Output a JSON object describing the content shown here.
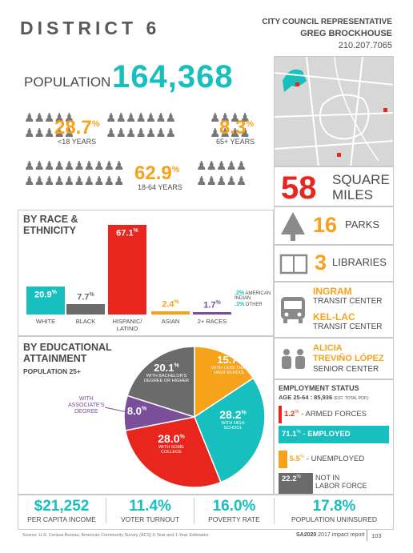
{
  "header": {
    "title": "DISTRICT 6",
    "rep_line1": "CITY COUNCIL REPRESENTATIVE",
    "rep_line2": "GREG BROCKHOUSE",
    "phone": "210.207.7065"
  },
  "population": {
    "label": "POPULATION",
    "value": "164,368"
  },
  "age": {
    "under18": {
      "value": "28.7",
      "unit": "%",
      "label": "<18 YEARS"
    },
    "over65": {
      "value": "8.3",
      "unit": "%",
      "label": "65+ YEARS"
    },
    "adult": {
      "value": "62.9",
      "unit": "%",
      "label": "18-64 YEARS"
    }
  },
  "area": {
    "value": "58",
    "unit_line1": "SQUARE",
    "unit_line2": "MILES"
  },
  "race": {
    "title_line1": "BY RACE &",
    "title_line2": "ETHNICITY",
    "bars": [
      {
        "label": "WHITE",
        "value": 20.9,
        "value_text": "20.9",
        "color": "#17bfbf"
      },
      {
        "label": "BLACK",
        "value": 7.7,
        "value_text": "7.7",
        "color": "#6b6b6b"
      },
      {
        "label": "HISPANIC/\nLATINO",
        "value": 67.1,
        "value_text": "67.1",
        "color": "#e8261e"
      },
      {
        "label": "ASIAN",
        "value": 2.4,
        "value_text": "2.4",
        "color": "#f7a21b"
      },
      {
        "label": "2+ RACES",
        "value": 1.7,
        "value_text": "1.7",
        "color": "#7a4f9a"
      }
    ],
    "minor": [
      {
        "value_text": ".2%",
        "label": "AMERICAN INDIAN"
      },
      {
        "value_text": ".1%",
        "label": "OTHER"
      }
    ]
  },
  "education": {
    "title_line1": "BY EDUCATIONAL",
    "title_line2": "ATTAINMENT",
    "subtitle": "POPULATION 25+",
    "chart_data": {
      "type": "pie",
      "slices": [
        {
          "name": "WITH LESS THAN HIGH SCHOOL",
          "value": 15.7,
          "color": "#f7a21b"
        },
        {
          "name": "WITH HIGH SCHOOL",
          "value": 28.2,
          "color": "#17bfbf"
        },
        {
          "name": "WITH SOME COLLEGE",
          "value": 28.0,
          "color": "#e8261e"
        },
        {
          "name": "WITH ASSOCIATE'S DEGREE",
          "value": 8.0,
          "color": "#7a4f9a"
        },
        {
          "name": "WITH BACHELOR'S DEGREE OR HIGHER",
          "value": 20.1,
          "color": "#6b6b6b"
        }
      ]
    },
    "labels": {
      "less_hs_val": "15.7",
      "less_hs_l1": "WITH LESS THAN",
      "less_hs_l2": "HIGH SCHOOL",
      "hs_val": "28.2",
      "hs_l1": "WITH HIGH",
      "hs_l2": "SCHOOL",
      "college_val": "28.0",
      "college_l1": "WITH SOME",
      "college_l2": "COLLEGE",
      "assoc_val": "8.0",
      "assoc_l1": "WITH",
      "assoc_l2": "ASSOCIATE'S",
      "assoc_l3": "DEGREE",
      "bach_val": "20.1",
      "bach_l1": "WITH BACHELOR'S",
      "bach_l2": "DEGREE OR HIGHER",
      "pct": "%"
    }
  },
  "amenities": {
    "parks": {
      "value": "16",
      "label": "PARKS"
    },
    "libraries": {
      "value": "3",
      "label": "LIBRARIES"
    },
    "transit": [
      {
        "name": "INGRAM",
        "label": "TRANSIT CENTER"
      },
      {
        "name": "KEL-LAC",
        "label": "TRANSIT CENTER"
      }
    ],
    "senior": {
      "name_line1": "ALICIA",
      "name_line2": "TREVIÑO LÓPEZ",
      "label": "SENIOR CENTER"
    }
  },
  "employment": {
    "title": "EMPLOYMENT STATUS",
    "subtitle": "AGE 25-64 : 85,936",
    "subtitle_note": "(EST. TOTAL POP.)",
    "rows": [
      {
        "value_text": "1.2",
        "label": "- ARMED FORCES",
        "value": 1.2,
        "color": "#e8261e"
      },
      {
        "value_text": "71.1",
        "label": "- EMPLOYED",
        "value": 71.1,
        "color": "#17bfbf"
      },
      {
        "value_text": "5.5",
        "label": "- UNEMPLOYED",
        "value": 5.5,
        "color": "#f7a21b"
      },
      {
        "value_text": "22.2",
        "label_line1": "NOT IN",
        "label_line2": "LABOR FORCE",
        "value": 22.2,
        "color": "#6b6b6b"
      }
    ]
  },
  "bottom": [
    {
      "value": "$21,252",
      "label": "PER CAPITA INCOME"
    },
    {
      "value": "11.4%",
      "label": "VOTER TURNOUT"
    },
    {
      "value": "16.0%",
      "label": "POVERTY RATE"
    },
    {
      "value": "17.8%",
      "label": "POPULATION UNINSURED"
    }
  ],
  "footer": {
    "source": "Source: U.S. Census Bureau, American Community Survey (ACS) 5-Year and 1-Year Estimates",
    "report_bold": "SA2020",
    "report_rest": "2017 impact report",
    "page": "103"
  }
}
